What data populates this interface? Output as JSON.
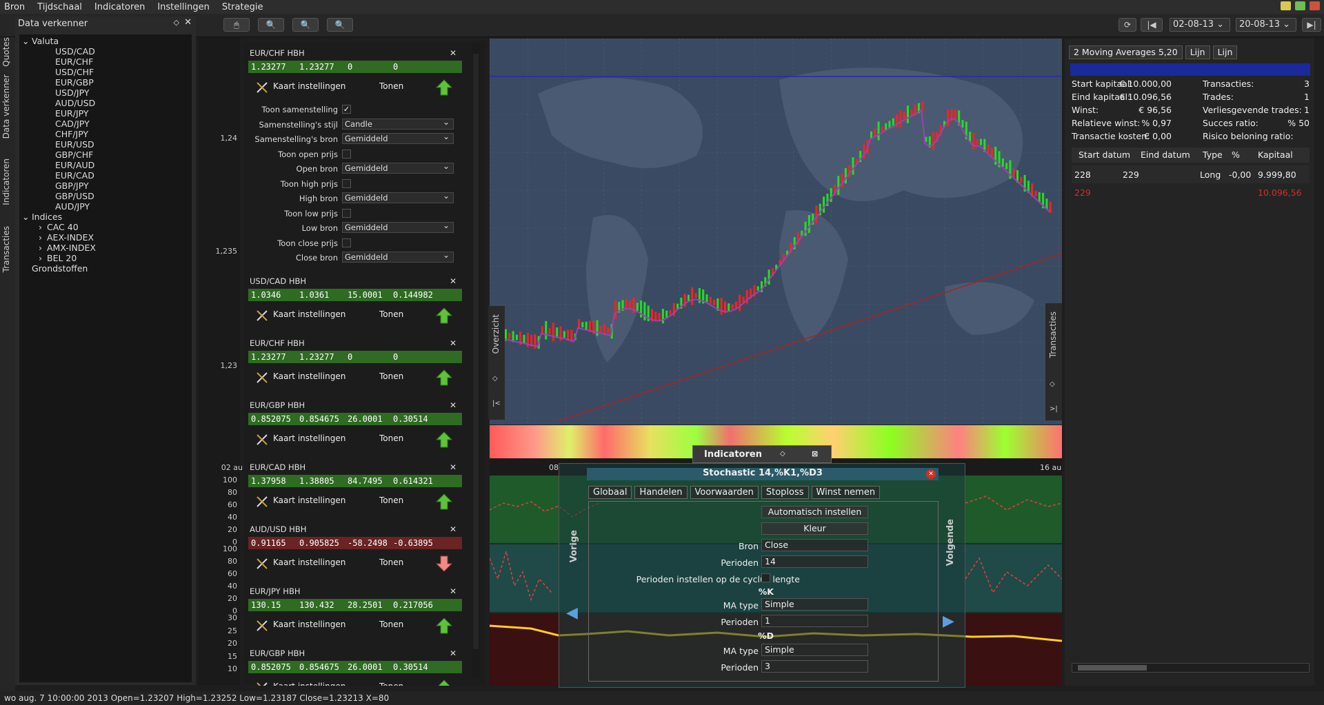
{
  "menu": [
    "Bron",
    "Tijdschaal",
    "Indicatoren",
    "Instellingen",
    "Strategie"
  ],
  "toolbar": {
    "date_from": "02-08-13",
    "date_to": "20-08-13"
  },
  "side_tabs": [
    "Quotes",
    "Data verkenner",
    "Indicatoren",
    "Transacties"
  ],
  "explorer": {
    "title": "Data verkenner",
    "groups": [
      {
        "label": "Valuta",
        "items": [
          "USD/CAD",
          "EUR/CHF",
          "USD/CHF",
          "EUR/GBP",
          "USD/JPY",
          "AUD/USD",
          "EUR/JPY",
          "CAD/JPY",
          "CHF/JPY",
          "EUR/USD",
          "GBP/CHF",
          "EUR/AUD",
          "EUR/CAD",
          "GBP/JPY",
          "GBP/USD",
          "AUD/JPY"
        ]
      },
      {
        "label": "Indices",
        "items": [
          "CAC 40",
          "AEX-INDEX",
          "AMX-INDEX",
          "BEL 20"
        ]
      },
      {
        "label": "Grondstoffen",
        "items": []
      }
    ]
  },
  "price_axis": [
    "1,24",
    "1,235",
    "1,23"
  ],
  "osc_axis": {
    "a": [
      "100",
      "80",
      "60",
      "40",
      "20",
      "0"
    ],
    "b": [
      "100",
      "80",
      "60",
      "40",
      "20",
      "0"
    ],
    "c": [
      "30",
      "25",
      "20",
      "15",
      "10"
    ]
  },
  "cards": [
    {
      "title": "EUR/CHF HBH",
      "v": [
        "1.23277",
        "1.23277",
        "0",
        "0"
      ],
      "dir": "up"
    },
    {
      "title": "USD/CAD HBH",
      "v": [
        "1.0346",
        "1.0361",
        "15.0001",
        "0.144982"
      ],
      "dir": "up"
    },
    {
      "title": "EUR/CHF HBH",
      "v": [
        "1.23277",
        "1.23277",
        "0",
        "0"
      ],
      "dir": "up"
    },
    {
      "title": "EUR/GBP HBH",
      "v": [
        "0.852075",
        "0.854675",
        "26.0001",
        "0.30514"
      ],
      "dir": "up"
    },
    {
      "title": "EUR/CAD HBH",
      "v": [
        "1.37958",
        "1.38805",
        "84.7495",
        "0.614321"
      ],
      "dir": "up"
    },
    {
      "title": "AUD/USD HBH",
      "v": [
        "0.91165",
        "0.905825",
        "-58.2498",
        "-0.63895"
      ],
      "dir": "down"
    },
    {
      "title": "EUR/JPY HBH",
      "v": [
        "130.15",
        "130.432",
        "28.2501",
        "0.217056"
      ],
      "dir": "up"
    },
    {
      "title": "EUR/GBP HBH",
      "v": [
        "0.852075",
        "0.854675",
        "26.0001",
        "0.30514"
      ],
      "dir": "up"
    }
  ],
  "card_labels": {
    "settings": "Kaart instellingen",
    "show": "Tonen"
  },
  "chart_settings": [
    {
      "label": "Toon samenstelling",
      "type": "cb",
      "value": "✓"
    },
    {
      "label": "Samenstelling's stijl",
      "type": "sel",
      "value": "Candle"
    },
    {
      "label": "Samenstelling's bron",
      "type": "sel",
      "value": "Gemiddeld"
    },
    {
      "label": "Toon open prijs",
      "type": "cb",
      "value": ""
    },
    {
      "label": "Open bron",
      "type": "sel",
      "value": "Gemiddeld"
    },
    {
      "label": "Toon high prijs",
      "type": "cb",
      "value": ""
    },
    {
      "label": "High bron",
      "type": "sel",
      "value": "Gemiddeld"
    },
    {
      "label": "Toon low prijs",
      "type": "cb",
      "value": ""
    },
    {
      "label": "Low bron",
      "type": "sel",
      "value": "Gemiddeld"
    },
    {
      "label": "Toon close prijs",
      "type": "cb",
      "value": ""
    },
    {
      "label": "Close bron",
      "type": "sel",
      "value": "Gemiddeld"
    }
  ],
  "chart_side": {
    "left": "Overzicht",
    "right": "Transacties"
  },
  "xaxis": {
    "a": "02 au",
    "b": "08",
    "c": "16 au"
  },
  "right_panel": {
    "tabs": [
      "2 Moving Averages 5,20",
      "Lijn",
      "Lijn"
    ],
    "stats_left": [
      [
        "Start kapitaal:",
        "€ 10.000,00"
      ],
      [
        "Eind kapitaal:",
        "€ 10.096,56"
      ],
      [
        "Winst:",
        "€ 96,56"
      ],
      [
        "Relatieve winst:",
        "% 0,97"
      ],
      [
        "Transactie kosten:",
        "€ 0,00"
      ]
    ],
    "stats_right": [
      [
        "Transacties:",
        "3"
      ],
      [
        "Trades:",
        "1"
      ],
      [
        "Verliesgevende trades:",
        "1"
      ],
      [
        "Succes ratio:",
        "% 50"
      ],
      [
        "Risico beloning ratio:",
        ""
      ]
    ],
    "columns": [
      "Start datum",
      "Eind datum",
      "Type",
      "%",
      "Kapitaal"
    ],
    "rows": [
      [
        "228",
        "229",
        "Long",
        "-0,00",
        "9.999,80"
      ],
      [
        "229",
        "",
        "",
        "",
        "10.096,56"
      ]
    ]
  },
  "indicator_panel": {
    "title": "Indicatoren"
  },
  "dialog": {
    "title": "Stochastic 14,%K1,%D3",
    "tabs": [
      "Globaal",
      "Handelen",
      "Voorwaarden",
      "Stoploss",
      "Winst nemen"
    ],
    "auto": "Automatisch instellen",
    "color": "Kleur",
    "prev": "Vorige",
    "next": "Volgende",
    "rows": [
      {
        "l": "Bron",
        "v": "Close"
      },
      {
        "l": "Perioden",
        "v": "14"
      },
      {
        "l": "Perioden instellen op de cyclus lengte",
        "v": ""
      },
      {
        "l": "%K",
        "v": ""
      },
      {
        "l": "MA type",
        "v": "Simple"
      },
      {
        "l": "Perioden",
        "v": "1"
      },
      {
        "l": "%D",
        "v": ""
      },
      {
        "l": "MA type",
        "v": "Simple"
      },
      {
        "l": "Perioden",
        "v": "3"
      }
    ]
  },
  "status": "wo aug. 7 10:00:00 2013 Open=1.23207 High=1.23252 Low=1.23187 Close=1.23213 X=80",
  "colors": {
    "up": "#2f6b23",
    "down": "#6b2323",
    "accent": "#1a2a9a"
  }
}
